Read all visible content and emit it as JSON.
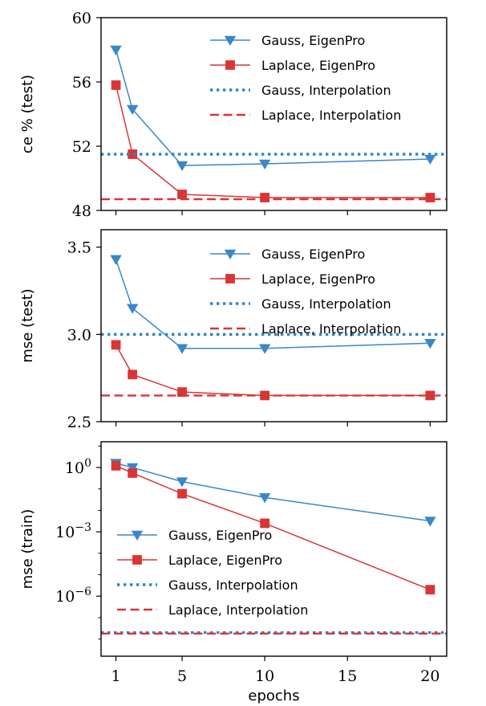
{
  "chart_data": [
    {
      "type": "line",
      "ylabel": "ce % (test)",
      "xlabel": "",
      "xlim": [
        0.1,
        21
      ],
      "ylim": [
        48,
        60
      ],
      "xticks": [
        1,
        5,
        10,
        15,
        20
      ],
      "yticks": [
        48,
        52,
        56,
        60
      ],
      "ytick_labels": [
        "48",
        "52",
        "56",
        "60"
      ],
      "show_xtick_labels": false,
      "legend": "upper-right",
      "series": [
        {
          "name": "Gauss, EigenPro",
          "style": "line-triangle",
          "color": "#3a87c8",
          "x": [
            1,
            2,
            5,
            10,
            20
          ],
          "y": [
            58.0,
            54.3,
            50.8,
            50.9,
            51.2
          ]
        },
        {
          "name": "Laplace, EigenPro",
          "style": "line-square",
          "color": "#d93535",
          "x": [
            1,
            2,
            5,
            10,
            20
          ],
          "y": [
            55.8,
            51.5,
            49.0,
            48.8,
            48.8
          ]
        },
        {
          "name": "Gauss, Interpolation",
          "style": "dotted",
          "color": "#2f86c5",
          "y": 51.5
        },
        {
          "name": "Laplace, Interpolation",
          "style": "dashed",
          "color": "#d93535",
          "y": 48.7
        }
      ]
    },
    {
      "type": "line",
      "ylabel": "mse (test)",
      "xlabel": "",
      "xlim": [
        0.1,
        21
      ],
      "ylim": [
        2.5,
        3.6
      ],
      "xticks": [
        1,
        5,
        10,
        15,
        20
      ],
      "yticks": [
        2.5,
        3.0,
        3.5
      ],
      "ytick_labels": [
        "2.5",
        "3.0",
        "3.5"
      ],
      "show_xtick_labels": false,
      "legend": "upper-right",
      "series": [
        {
          "name": "Gauss, EigenPro",
          "style": "line-triangle",
          "color": "#3a87c8",
          "x": [
            1,
            2,
            5,
            10,
            20
          ],
          "y": [
            3.43,
            3.15,
            2.92,
            2.92,
            2.95
          ]
        },
        {
          "name": "Laplace, EigenPro",
          "style": "line-square",
          "color": "#d93535",
          "x": [
            1,
            2,
            5,
            10,
            20
          ],
          "y": [
            2.94,
            2.77,
            2.67,
            2.65,
            2.65
          ]
        },
        {
          "name": "Gauss, Interpolation",
          "style": "dotted",
          "color": "#2f86c5",
          "y": 3.0
        },
        {
          "name": "Laplace, Interpolation",
          "style": "dashed",
          "color": "#d93535",
          "y": 2.65
        }
      ]
    },
    {
      "type": "line",
      "ylabel": "mse (train)",
      "xlabel": "epochs",
      "xlim": [
        0.1,
        21
      ],
      "yscale": "log",
      "ylim_log10": [
        -8.8,
        1.2
      ],
      "xticks": [
        1,
        5,
        10,
        15,
        20
      ],
      "xtick_labels": [
        "1",
        "5",
        "10",
        "15",
        "20"
      ],
      "yticks_log10": [
        0,
        -3,
        -6
      ],
      "ytick_labels": [
        "10^0",
        "10^−3",
        "10^−6"
      ],
      "show_xtick_labels": true,
      "legend": "lower-left",
      "series": [
        {
          "name": "Gauss, EigenPro",
          "style": "line-triangle",
          "color": "#3a87c8",
          "x": [
            1,
            2,
            5,
            10,
            20
          ],
          "y": [
            1.6,
            1.0,
            0.22,
            0.04,
            0.0032
          ]
        },
        {
          "name": "Laplace, EigenPro",
          "style": "line-square",
          "color": "#d93535",
          "x": [
            1,
            2,
            5,
            10,
            20
          ],
          "y": [
            1.2,
            0.55,
            0.06,
            0.0025,
            2e-06
          ]
        },
        {
          "name": "Gauss, Interpolation",
          "style": "dotted",
          "color": "#2f86c5",
          "y": 2e-08
        },
        {
          "name": "Laplace, Interpolation",
          "style": "dashed",
          "color": "#d93535",
          "y": 1.8e-08
        }
      ]
    }
  ]
}
